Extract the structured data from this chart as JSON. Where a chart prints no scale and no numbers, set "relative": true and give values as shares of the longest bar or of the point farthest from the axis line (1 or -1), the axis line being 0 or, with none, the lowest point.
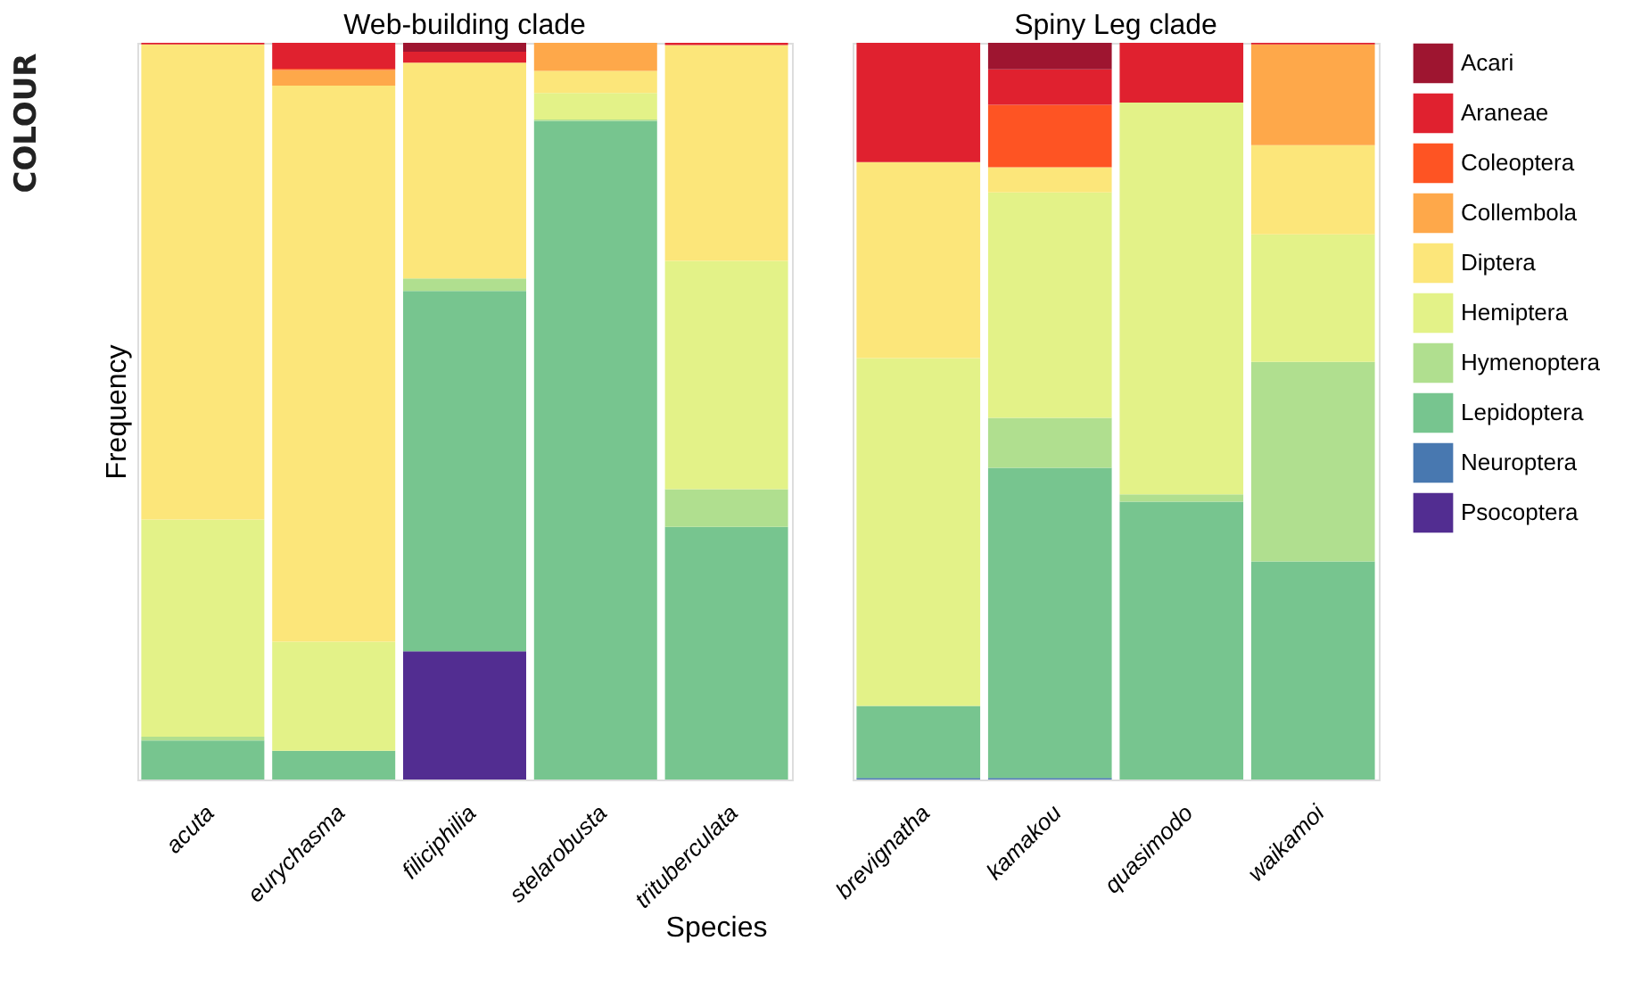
{
  "chart_data": [
    {
      "type": "bar",
      "title": "Web-building clade",
      "ylabel": "Frequency",
      "xlabel": "Species",
      "stacked": true,
      "relative": true,
      "legend": "right",
      "annotations": [
        "COLOUR"
      ],
      "categories": [
        "acuta",
        "eurychasma",
        "filiciphilia",
        "stelarobusta",
        "trituberculata"
      ],
      "series": [
        {
          "name": "Psocoptera",
          "color": "#522d91",
          "values": [
            0,
            0,
            0.174,
            0,
            0
          ]
        },
        {
          "name": "Lepidoptera",
          "color": "#77c58f",
          "values": [
            0.053,
            0.039,
            0.489,
            0.894,
            0.343
          ]
        },
        {
          "name": "Hymenoptera",
          "color": "#b0df8f",
          "values": [
            0.005,
            0,
            0.017,
            0.002,
            0.051
          ]
        },
        {
          "name": "Hemiptera",
          "color": "#e3f288",
          "values": [
            0.295,
            0.148,
            0,
            0.036,
            0.31
          ]
        },
        {
          "name": "Diptera",
          "color": "#fce67a",
          "values": [
            0.645,
            0.755,
            0.293,
            0.03,
            0.293
          ]
        },
        {
          "name": "Collembola",
          "color": "#fea84a",
          "values": [
            0,
            0.021,
            0,
            0.038,
            0
          ]
        },
        {
          "name": "Coleoptera",
          "color": "#fe5423",
          "values": [
            0,
            0.002,
            0,
            0,
            0
          ]
        },
        {
          "name": "Araneae",
          "color": "#e0212f",
          "values": [
            0.002,
            0.035,
            0.015,
            0,
            0.003
          ]
        },
        {
          "name": "Acari",
          "color": "#9e1530",
          "values": [
            0,
            0,
            0.012,
            0,
            0
          ]
        }
      ]
    },
    {
      "type": "bar",
      "title": "Spiny Leg clade",
      "stacked": true,
      "relative": true,
      "legend": "right",
      "categories": [
        "brevignatha",
        "kamakou",
        "quasimodo",
        "waikamoi"
      ],
      "series": [
        {
          "name": "Neuroptera",
          "color": "#4878b0",
          "values": [
            0.002,
            0.002,
            0,
            0
          ]
        },
        {
          "name": "Lepidoptera",
          "color": "#77c58f",
          "values": [
            0.098,
            0.421,
            0.377,
            0.296
          ]
        },
        {
          "name": "Hymenoptera",
          "color": "#b0df8f",
          "values": [
            0,
            0.068,
            0.01,
            0.271
          ]
        },
        {
          "name": "Hemiptera",
          "color": "#e3f288",
          "values": [
            0.472,
            0.306,
            0.532,
            0.173
          ]
        },
        {
          "name": "Diptera",
          "color": "#fce67a",
          "values": [
            0.266,
            0.034,
            0,
            0.121
          ]
        },
        {
          "name": "Collembola",
          "color": "#fea84a",
          "values": [
            0,
            0,
            0,
            0.137
          ]
        },
        {
          "name": "Coleoptera",
          "color": "#fe5423",
          "values": [
            0,
            0.085,
            0,
            0
          ]
        },
        {
          "name": "Araneae",
          "color": "#e0212f",
          "values": [
            0.162,
            0.048,
            0.081,
            0.002
          ]
        },
        {
          "name": "Acari",
          "color": "#9e1530",
          "values": [
            0,
            0.036,
            0,
            0
          ]
        }
      ]
    }
  ]
}
